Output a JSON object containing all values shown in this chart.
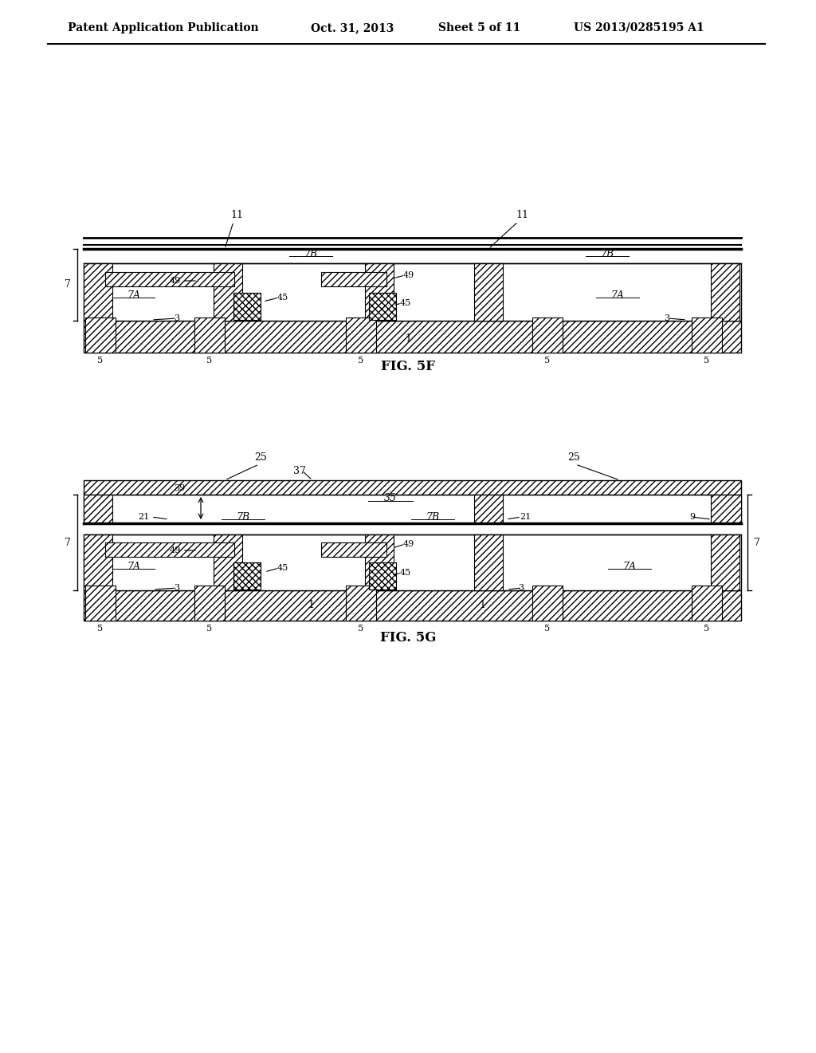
{
  "bg_color": "#ffffff",
  "header_text": "Patent Application Publication",
  "header_date": "Oct. 31, 2013",
  "header_sheet": "Sheet 5 of 11",
  "header_patent": "US 2013/0285195 A1",
  "fig5f_label": "FIG. 5F",
  "fig5g_label": "FIG. 5G"
}
